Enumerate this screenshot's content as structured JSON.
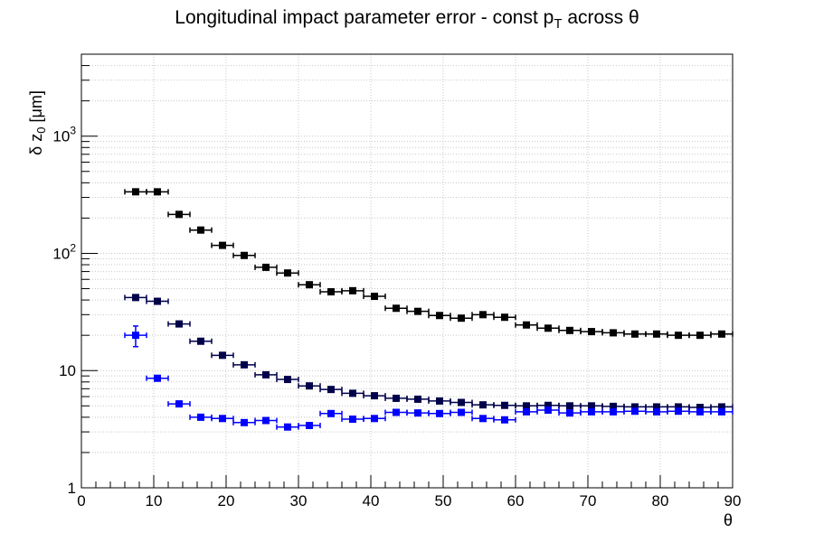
{
  "chart_data": {
    "type": "scatter",
    "title": {
      "main": "Longitudinal impact parameter error - const p",
      "sub": "T",
      "tail": " across θ"
    },
    "xlabel": "θ",
    "ylabel": {
      "main": "δ z",
      "sub": "0",
      "tail": " [μm]"
    },
    "xlim": [
      0,
      90
    ],
    "ylim": [
      1,
      5000
    ],
    "yscale": "log",
    "grid": true,
    "x_ticks": [
      "0",
      "10",
      "20",
      "30",
      "40",
      "50",
      "60",
      "70",
      "80",
      "90"
    ],
    "y_ticks": [
      {
        "value": 1,
        "base": "1",
        "exp": ""
      },
      {
        "value": 10,
        "base": "10",
        "exp": ""
      },
      {
        "value": 100,
        "base": "10",
        "exp": "2"
      },
      {
        "value": 1000,
        "base": "10",
        "exp": "3"
      }
    ],
    "bin_half_width": 1.5,
    "x": [
      7.5,
      10.5,
      13.5,
      16.5,
      19.5,
      22.5,
      25.5,
      28.5,
      31.5,
      34.5,
      37.5,
      40.5,
      43.5,
      46.5,
      49.5,
      52.5,
      55.5,
      58.5,
      61.5,
      64.5,
      67.5,
      70.5,
      73.5,
      76.5,
      79.5,
      82.5,
      85.5,
      88.5
    ],
    "series": [
      {
        "color": "#000000",
        "values": [
          335,
          335,
          215,
          158,
          117,
          96,
          76,
          68,
          54,
          47,
          48,
          43,
          34,
          32,
          29.5,
          28,
          30,
          28.5,
          24.5,
          23,
          22,
          21.5,
          21,
          20.5,
          20.5,
          20,
          20,
          20.5
        ],
        "errors": [
          10,
          10,
          8,
          6,
          4,
          3,
          2.5,
          2,
          1.5,
          1.5,
          1.5,
          1.2,
          1,
          1,
          0.8,
          0.8,
          0.8,
          0.8,
          0.6,
          0.6,
          0.6,
          0.6,
          0.5,
          0.5,
          0.5,
          0.5,
          0.5,
          0.5
        ]
      },
      {
        "color": "#00004a",
        "values": [
          42,
          39,
          25,
          17.8,
          13.5,
          11.2,
          9.2,
          8.4,
          7.4,
          6.9,
          6.4,
          6.1,
          5.8,
          5.7,
          5.5,
          5.35,
          5.1,
          5.05,
          5.0,
          5.05,
          5.0,
          5.0,
          4.95,
          4.9,
          4.9,
          4.9,
          4.85,
          4.9
        ],
        "errors": [
          1.5,
          1.5,
          1.0,
          0.6,
          0.4,
          0.3,
          0.25,
          0.2,
          0.18,
          0.15,
          0.13,
          0.12,
          0.1,
          0.1,
          0.1,
          0.1,
          0.1,
          0.1,
          0.1,
          0.1,
          0.1,
          0.1,
          0.1,
          0.1,
          0.1,
          0.1,
          0.1,
          0.1
        ]
      },
      {
        "color": "#0000ff",
        "values": [
          20,
          8.6,
          5.2,
          4.0,
          3.9,
          3.6,
          3.75,
          3.3,
          3.4,
          4.3,
          3.85,
          3.9,
          4.4,
          4.35,
          4.3,
          4.4,
          3.9,
          3.8,
          4.45,
          4.6,
          4.35,
          4.45,
          4.45,
          4.5,
          4.45,
          4.5,
          4.45,
          4.45
        ],
        "errors": [
          4,
          0.4,
          0.25,
          0.15,
          0.15,
          0.12,
          0.12,
          0.1,
          0.1,
          0.15,
          0.12,
          0.12,
          0.12,
          0.12,
          0.12,
          0.12,
          0.1,
          0.1,
          0.12,
          0.12,
          0.12,
          0.12,
          0.12,
          0.12,
          0.12,
          0.12,
          0.12,
          0.12
        ]
      }
    ]
  }
}
